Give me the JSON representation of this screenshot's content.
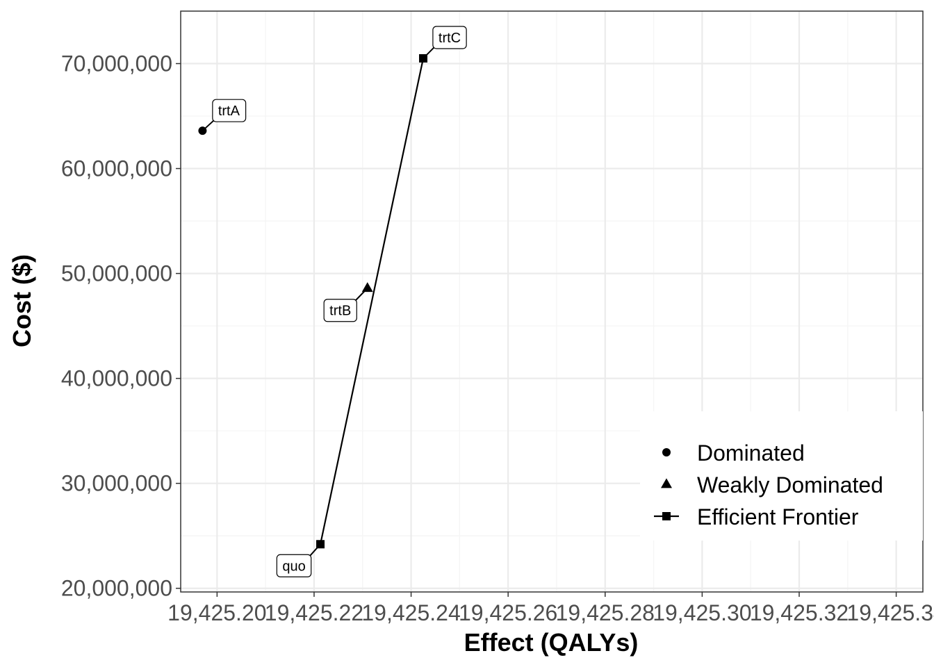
{
  "chart_data": {
    "type": "scatter",
    "xlabel": "Effect (QALYs)",
    "ylabel": "Cost ($)",
    "xlim": [
      19425.1925,
      19425.3455
    ],
    "ylim": [
      19650000,
      75000000
    ],
    "x_ticks": [
      19425.2,
      19425.22,
      19425.24,
      19425.26,
      19425.28,
      19425.3,
      19425.32,
      19425.34
    ],
    "x_tick_labels": [
      "19,425.20",
      "19,425.22",
      "19,425.24",
      "19,425.26",
      "19,425.28",
      "19,425.30",
      "19,425.32",
      "19,425.34"
    ],
    "y_ticks": [
      20000000,
      30000000,
      40000000,
      50000000,
      60000000,
      70000000
    ],
    "y_tick_labels": [
      "20,000,000",
      "30,000,000",
      "40,000,000",
      "50,000,000",
      "60,000,000",
      "70,000,000"
    ],
    "grid": true,
    "legend_position": "bottom-right",
    "legend": [
      {
        "name": "Dominated",
        "shape": "circle"
      },
      {
        "name": "Weakly Dominated",
        "shape": "triangle"
      },
      {
        "name": "Efficient Frontier",
        "shape": "square"
      }
    ],
    "points": [
      {
        "label": "quo",
        "x": 19425.2213,
        "y": 24200000,
        "status": "Efficient Frontier"
      },
      {
        "label": "trtA",
        "x": 19425.197,
        "y": 63600000,
        "status": "Dominated"
      },
      {
        "label": "trtB",
        "x": 19425.231,
        "y": 48600000,
        "status": "Weakly Dominated"
      },
      {
        "label": "trtC",
        "x": 19425.2425,
        "y": 70500000,
        "status": "Efficient Frontier"
      }
    ],
    "frontier": [
      "quo",
      "trtC"
    ]
  },
  "colors": {
    "panel_border": "#333333",
    "grid_major": "#ebebeb",
    "grid_minor": "#f5f5f5",
    "points": "#000000",
    "tick_text": "#4d4d4d"
  }
}
